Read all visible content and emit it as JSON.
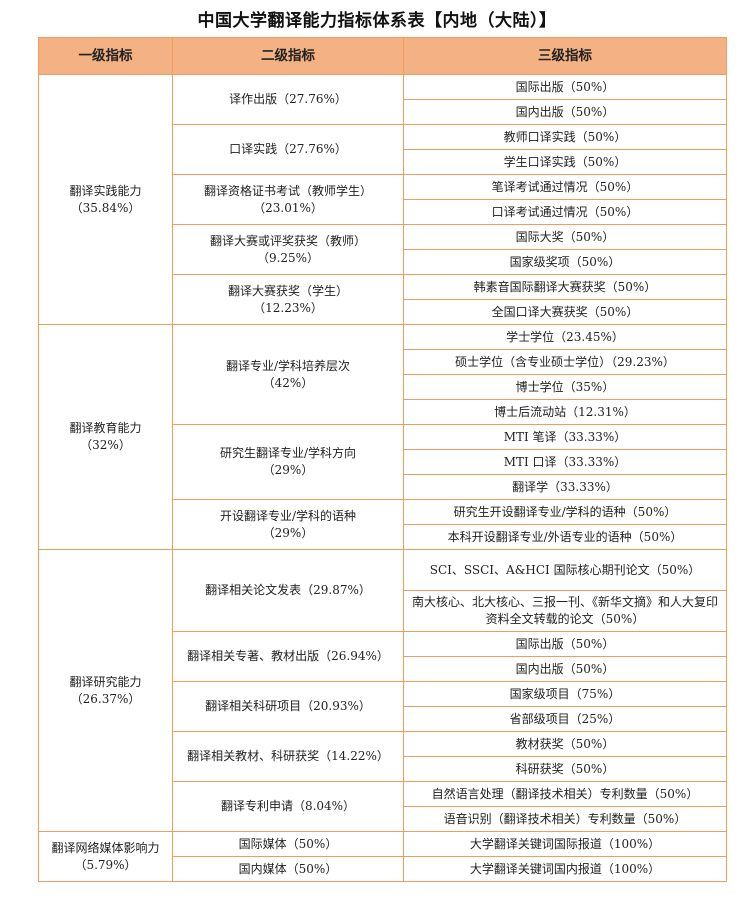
{
  "title": "中国大学翻译能力指标体系表【内地（大陆）】",
  "headers": [
    "一级指标",
    "二级指标",
    "三级指标"
  ],
  "colors": {
    "border": "#ef9d5f",
    "header_fill": "#f4b183"
  },
  "level1": [
    {
      "label": [
        "翻译实践能力",
        "（35.84%）"
      ],
      "level2": [
        {
          "label": [
            "译作出版（27.76%）"
          ],
          "level3": [
            "国际出版（50%）",
            "国内出版（50%）"
          ]
        },
        {
          "label": [
            "口译实践（27.76%）"
          ],
          "level3": [
            "教师口译实践（50%）",
            "学生口译实践（50%）"
          ]
        },
        {
          "label": [
            "翻译资格证书考试（教师学生）",
            "（23.01%）"
          ],
          "level3": [
            "笔译考试通过情况（50%）",
            "口译考试通过情况（50%）"
          ]
        },
        {
          "label": [
            "翻译大赛或评奖获奖（教师）",
            "（9.25%）"
          ],
          "level3": [
            "国际大奖（50%）",
            "国家级奖项（50%）"
          ]
        },
        {
          "label": [
            "翻译大赛获奖（学生）",
            "（12.23%）"
          ],
          "level3": [
            "韩素音国际翻译大赛获奖（50%）",
            "全国口译大赛获奖（50%）"
          ]
        }
      ]
    },
    {
      "label": [
        "翻译教育能力",
        "（32%）"
      ],
      "level2": [
        {
          "label": [
            "翻译专业/学科培养层次",
            "（42%）"
          ],
          "level3": [
            "学士学位（23.45%）",
            "硕士学位（含专业硕士学位）（29.23%）",
            "博士学位（35%）",
            "博士后流动站（12.31%）"
          ]
        },
        {
          "label": [
            "研究生翻译专业/学科方向",
            "（29%）"
          ],
          "level3": [
            "MTI 笔译（33.33%）",
            "MTI 口译（33.33%）",
            "翻译学（33.33%）"
          ]
        },
        {
          "label": [
            "开设翻译专业/学科的语种",
            "（29%）"
          ],
          "level3": [
            "研究生开设翻译专业/学科的语种（50%）",
            "本科开设翻译专业/外语专业的语种（50%）"
          ]
        }
      ]
    },
    {
      "label": [
        "翻译研究能力",
        "（26.37%）"
      ],
      "level2": [
        {
          "label": [
            "翻译相关论文发表（29.87%）"
          ],
          "level3": [
            "SCI、SSCI、A&HCI 国际核心期刊论文（50%）",
            "南大核心、北大核心、三报一刊、《新华文摘》和人大复印资料全文转载的论文（50%）"
          ]
        },
        {
          "label": [
            "翻译相关专著、教材出版（26.94%）"
          ],
          "level3": [
            "国际出版（50%）",
            "国内出版（50%）"
          ]
        },
        {
          "label": [
            "翻译相关科研项目（20.93%）"
          ],
          "level3": [
            "国家级项目（75%）",
            "省部级项目（25%）"
          ]
        },
        {
          "label": [
            "翻译相关教材、科研获奖（14.22%）"
          ],
          "level3": [
            "教材获奖（50%）",
            "科研获奖（50%）"
          ]
        },
        {
          "label": [
            "翻译专利申请（8.04%）"
          ],
          "level3": [
            "自然语言处理（翻译技术相关）专利数量（50%）",
            "语音识别（翻译技术相关）专利数量（50%）"
          ]
        }
      ]
    },
    {
      "label": [
        "翻译网络媒体影响力",
        "（5.79%）"
      ],
      "level2": [
        {
          "label": [
            "国际媒体（50%）"
          ],
          "level3": [
            "大学翻译关键词国际报道（100%）"
          ]
        },
        {
          "label": [
            "国内媒体（50%）"
          ],
          "level3": [
            "大学翻译关键词国内报道（100%）"
          ]
        }
      ]
    }
  ]
}
